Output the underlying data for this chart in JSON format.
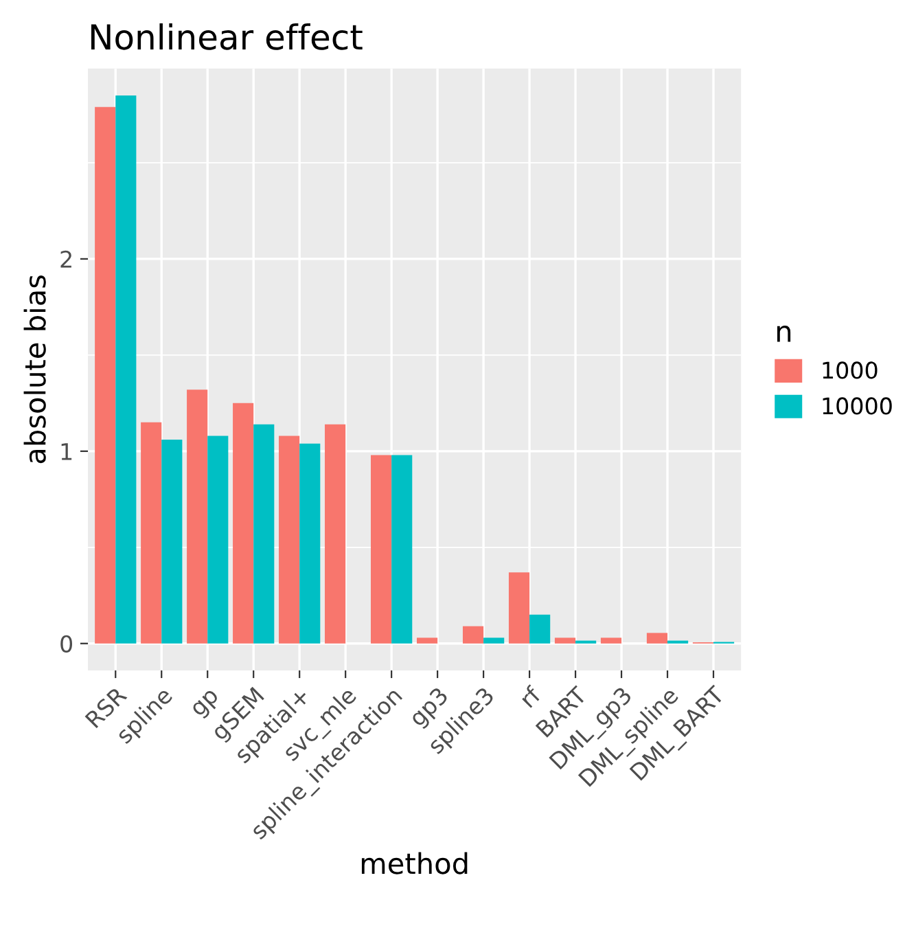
{
  "chart_data": {
    "type": "bar",
    "title": "Nonlinear effect",
    "xlabel": "method",
    "ylabel": "absolute bias",
    "legend_title": "n",
    "legend": "right",
    "grid": true,
    "categories": [
      "RSR",
      "spline",
      "gp",
      "gSEM",
      "spatial+",
      "svc_mle",
      "spline_interaction",
      "gp3",
      "spline3",
      "rf",
      "BART",
      "DML_gp3",
      "DML_spline",
      "DML_BART"
    ],
    "series": [
      {
        "name": "1000",
        "color": "#f8766d",
        "values": [
          2.79,
          1.15,
          1.32,
          1.25,
          1.08,
          1.14,
          0.98,
          0.03,
          0.09,
          0.37,
          0.03,
          0.03,
          0.055,
          0.006
        ]
      },
      {
        "name": "10000",
        "color": "#00bfc4",
        "values": [
          2.85,
          1.06,
          1.08,
          1.14,
          1.04,
          null,
          0.98,
          null,
          0.03,
          0.15,
          0.015,
          null,
          0.015,
          0.008
        ]
      }
    ],
    "ylim": [
      -0.14,
      2.99
    ],
    "yticks": [
      0,
      1,
      2
    ]
  }
}
